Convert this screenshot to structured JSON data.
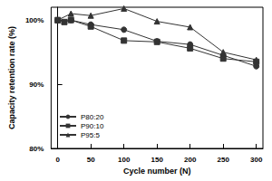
{
  "chart_data": {
    "type": "line",
    "x_label": "Cycle number (N)",
    "y_label": "Capacity retention rate (%)",
    "xlim": [
      -10,
      310
    ],
    "xticks": [
      0,
      50,
      100,
      150,
      200,
      250,
      300
    ],
    "ylim": [
      80,
      102
    ],
    "yticks": [
      {
        "value": 80,
        "label": "80%"
      },
      {
        "value": 90,
        "label": "90%"
      },
      {
        "value": 100,
        "label": "100%"
      }
    ],
    "grid": false,
    "legend": "bottom left",
    "series": [
      {
        "name": "P80:20",
        "color": "#333333",
        "marker": "circle",
        "x": [
          0,
          20,
          50,
          100,
          150,
          200,
          250,
          300
        ],
        "values": [
          100,
          100,
          99.3,
          98.5,
          96.7,
          96.2,
          94.5,
          92.8
        ]
      },
      {
        "name": "P90:10",
        "color": "#333333",
        "marker": "square",
        "x": [
          0,
          10,
          20,
          50,
          100,
          150,
          200,
          250,
          300
        ],
        "values": [
          100,
          99.7,
          100,
          99,
          96.8,
          96.6,
          95.6,
          94,
          93.5
        ]
      },
      {
        "name": "P95:5",
        "color": "#333333",
        "marker": "triangle",
        "x": [
          0,
          20,
          50,
          100,
          150,
          200,
          250,
          300
        ],
        "values": [
          100,
          101,
          100.7,
          101.8,
          99.8,
          98.9,
          95,
          93.8
        ]
      }
    ]
  }
}
